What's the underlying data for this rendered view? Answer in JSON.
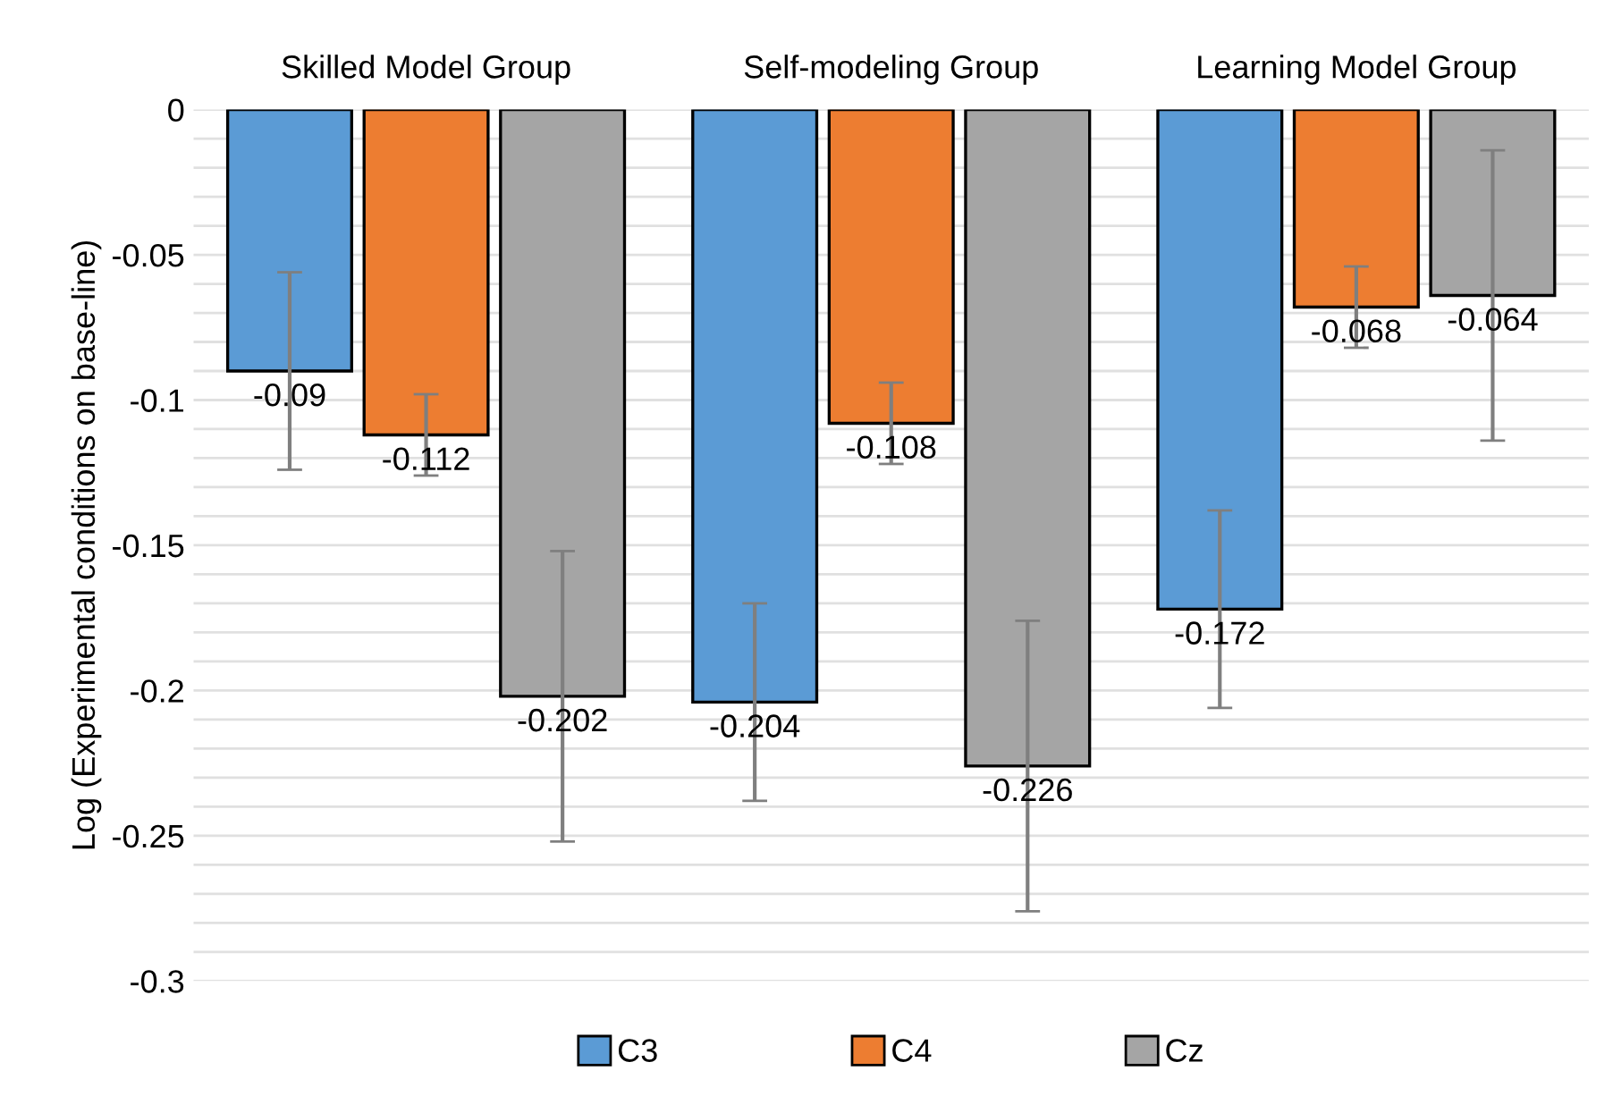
{
  "chart_data": {
    "type": "bar",
    "ylabel": "Log (Experimental conditions on base-line)",
    "categories": [
      "Skilled Model Group",
      "Self-modeling Group",
      "Learning Model Group"
    ],
    "series": [
      {
        "name": "C3",
        "color": "#5b9bd5",
        "values": [
          -0.09,
          -0.204,
          -0.172
        ],
        "errors": [
          0.034,
          0.034,
          0.034
        ]
      },
      {
        "name": "C4",
        "color": "#ed7d31",
        "values": [
          -0.112,
          -0.108,
          -0.068
        ],
        "errors": [
          0.014,
          0.014,
          0.014
        ]
      },
      {
        "name": "Cz",
        "color": "#a5a5a5",
        "values": [
          -0.202,
          -0.226,
          -0.064
        ],
        "errors": [
          0.05,
          0.05,
          0.05
        ]
      }
    ],
    "ylim": [
      -0.3,
      0
    ],
    "yticks": [
      0,
      {
        "value": -0.01,
        "label": null
      },
      {
        "value": -0.02,
        "label": null
      },
      {
        "value": -0.03,
        "label": null
      },
      {
        "value": -0.04,
        "label": null
      },
      -0.05,
      {
        "value": -0.06,
        "label": null
      },
      {
        "value": -0.07,
        "label": null
      },
      {
        "value": -0.08,
        "label": null
      },
      {
        "value": -0.09,
        "label": null
      },
      -0.1,
      {
        "value": -0.11,
        "label": null
      },
      {
        "value": -0.12,
        "label": null
      },
      {
        "value": -0.13,
        "label": null
      },
      {
        "value": -0.14,
        "label": null
      },
      -0.15,
      {
        "value": -0.16,
        "label": null
      },
      {
        "value": -0.17,
        "label": null
      },
      {
        "value": -0.18,
        "label": null
      },
      {
        "value": -0.19,
        "label": null
      },
      -0.2,
      {
        "value": -0.21,
        "label": null
      },
      {
        "value": -0.22,
        "label": null
      },
      {
        "value": -0.23,
        "label": null
      },
      {
        "value": -0.24,
        "label": null
      },
      -0.25,
      {
        "value": -0.26,
        "label": null
      },
      {
        "value": -0.27,
        "label": null
      },
      {
        "value": -0.28,
        "label": null
      },
      {
        "value": -0.29,
        "label": null
      },
      -0.3
    ],
    "grid": "y",
    "legend": "bottom",
    "data_labels": true
  }
}
